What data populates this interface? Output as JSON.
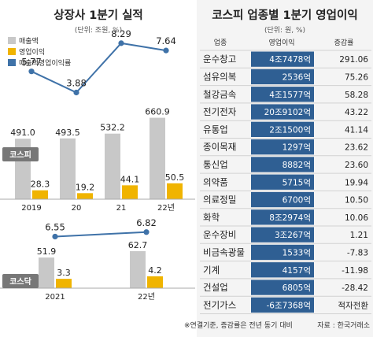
{
  "left_title": "상장사 1분기 실적",
  "left_unit": "(단위: 조원, %)",
  "right_title": "코스피 업종별 1분기 영업이익",
  "right_unit": "(단위: 원, %)",
  "footnote": "※연결기준, 증감률은 전년 동기 대비",
  "source": "자료 : 한국거래소",
  "colors": {
    "sales": "#c8c8c8",
    "op": "#f0b400",
    "margin": "#3f72a8",
    "op_cell": "#2f5f93",
    "market_tag": "#777777"
  },
  "chart_data": [
    {
      "type": "bar",
      "market_label": "코스피",
      "categories": [
        "2019",
        "20",
        "21",
        "22년"
      ],
      "series": [
        {
          "name": "매출액",
          "values": [
            491.0,
            493.5,
            532.2,
            660.9
          ],
          "labels": [
            "491.0",
            "493.5",
            "532.2",
            "660.9"
          ]
        },
        {
          "name": "영업이익",
          "values": [
            28.3,
            19.2,
            44.1,
            50.5
          ],
          "labels": [
            "28.3",
            "19.2",
            "44.1",
            "50.5"
          ]
        },
        {
          "name": "매출액영업이익률",
          "type": "line",
          "values": [
            5.77,
            3.88,
            8.29,
            7.64
          ],
          "labels": [
            "5.77",
            "3.88",
            "8.29",
            "7.64"
          ]
        }
      ]
    },
    {
      "type": "bar",
      "market_label": "코스닥",
      "categories": [
        "2021",
        "22년"
      ],
      "series": [
        {
          "name": "매출액",
          "values": [
            51.9,
            62.7
          ],
          "labels": [
            "51.9",
            "62.7"
          ]
        },
        {
          "name": "영업이익",
          "values": [
            3.3,
            4.2
          ],
          "labels": [
            "3.3",
            "4.2"
          ]
        },
        {
          "name": "매출액영업이익률",
          "type": "line",
          "values": [
            6.55,
            6.82
          ],
          "labels": [
            "6.55",
            "6.82"
          ]
        }
      ]
    },
    {
      "type": "table",
      "columns": [
        "업종",
        "영업이익",
        "증감률"
      ],
      "rows": [
        [
          "운수창고",
          "4조7478억",
          "291.06"
        ],
        [
          "섬유의복",
          "2536억",
          "75.26"
        ],
        [
          "철강금속",
          "4조1577억",
          "58.28"
        ],
        [
          "전기전자",
          "20조9102억",
          "43.22"
        ],
        [
          "유통업",
          "2조1500억",
          "41.14"
        ],
        [
          "종이목재",
          "1297억",
          "23.62"
        ],
        [
          "통신업",
          "8882억",
          "23.60"
        ],
        [
          "의약품",
          "5715억",
          "19.94"
        ],
        [
          "의료정밀",
          "6700억",
          "10.50"
        ],
        [
          "화학",
          "8조2974억",
          "10.06"
        ],
        [
          "운수장비",
          "3조267억",
          "1.21"
        ],
        [
          "비금속광물",
          "1533억",
          "-7.83"
        ],
        [
          "기계",
          "4157억",
          "-11.98"
        ],
        [
          "건설업",
          "6805억",
          "-28.42"
        ],
        [
          "전기가스",
          "-6조7368억",
          "적자전환"
        ]
      ]
    }
  ]
}
